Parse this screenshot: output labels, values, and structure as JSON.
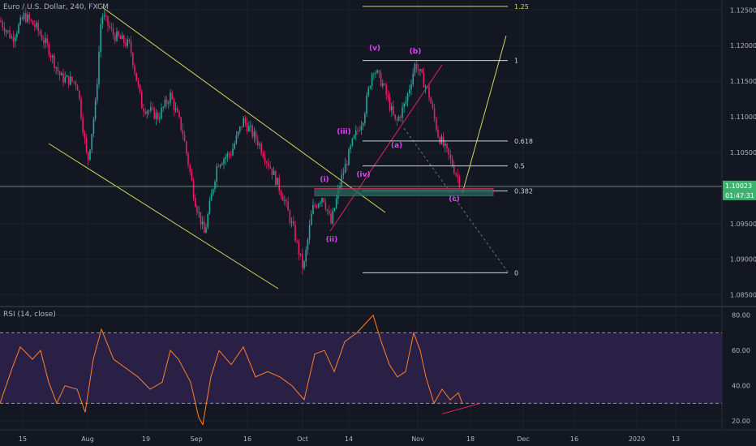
{
  "header": {
    "symbol": "Euro / U.S. Dollar, 240, FXCM"
  },
  "rsi_header": {
    "label": "RSI (14, close)"
  },
  "colors": {
    "background": "#131722",
    "up_candle": "#26a69a",
    "down_candle": "#e91e63",
    "channel": "#d4d45a",
    "fib": "#d1d4dc",
    "wave_label": "#e040fb",
    "trendline": "#e91e63",
    "price_badge": "#3cb371",
    "rsi_line": "#ff7f2a",
    "rsi_band": "#2a1f45",
    "grid": "#1e2230"
  },
  "chart_data": [
    {
      "type": "candlestick",
      "title": "Euro / U.S. Dollar, 240, FXCM",
      "y_axis": {
        "ticks": [
          "1.12500",
          "1.12000",
          "1.11500",
          "1.11000",
          "1.10500",
          "1.10000",
          "1.09500",
          "1.09000",
          "1.08500"
        ],
        "range": [
          1.0837,
          1.1264
        ]
      },
      "x_axis": {
        "ticks": [
          "15",
          "Aug",
          "19",
          "Sep",
          "16",
          "Oct",
          "14",
          "Nov",
          "18",
          "Dec",
          "16",
          "2020",
          "13"
        ]
      },
      "last_price": "1.10023",
      "countdown": "01:47:31",
      "fib_levels": [
        {
          "label": "1.25",
          "price": 1.1255
        },
        {
          "label": "1",
          "price": 1.1179
        },
        {
          "label": "0.618",
          "price": 1.1066
        },
        {
          "label": "0.5",
          "price": 1.1031
        },
        {
          "label": "0.382",
          "price": 1.0996
        },
        {
          "label": "0",
          "price": 1.0881
        }
      ],
      "wave_labels": [
        "(i)",
        "(ii)",
        "(iii)",
        "(iv)",
        "(v)",
        "(a)",
        "(b)",
        "(c)"
      ],
      "price_path": [
        [
          0,
          1.1235
        ],
        [
          15,
          1.121
        ],
        [
          30,
          1.1242
        ],
        [
          45,
          1.1225
        ],
        [
          60,
          1.1195
        ],
        [
          75,
          1.1155
        ],
        [
          95,
          1.1148
        ],
        [
          108,
          1.1035
        ],
        [
          118,
          1.112
        ],
        [
          125,
          1.1245
        ],
        [
          140,
          1.1215
        ],
        [
          160,
          1.12
        ],
        [
          175,
          1.1115
        ],
        [
          195,
          1.11
        ],
        [
          210,
          1.113
        ],
        [
          225,
          1.108
        ],
        [
          240,
          1.0985
        ],
        [
          252,
          1.0935
        ],
        [
          268,
          1.1035
        ],
        [
          285,
          1.105
        ],
        [
          300,
          1.1095
        ],
        [
          318,
          1.1065
        ],
        [
          335,
          1.1025
        ],
        [
          350,
          1.0985
        ],
        [
          362,
          1.094
        ],
        [
          374,
          1.0885
        ],
        [
          385,
          1.097
        ],
        [
          398,
          1.099
        ],
        [
          408,
          1.095
        ],
        [
          420,
          1.101
        ],
        [
          435,
          1.1065
        ],
        [
          448,
          1.11
        ],
        [
          460,
          1.117
        ],
        [
          472,
          1.1145
        ],
        [
          488,
          1.109
        ],
        [
          500,
          1.112
        ],
        [
          512,
          1.1175
        ],
        [
          528,
          1.1135
        ],
        [
          540,
          1.1075
        ],
        [
          555,
          1.104
        ],
        [
          568,
          1.1005
        ]
      ]
    },
    {
      "type": "line",
      "title": "RSI (14, close)",
      "y_axis": {
        "ticks": [
          "80.00",
          "60.00",
          "40.00",
          "20.00"
        ],
        "range": [
          15,
          84
        ]
      },
      "bands": [
        70,
        30
      ],
      "series": [
        {
          "values": [
            [
              0,
              30
            ],
            [
              15,
              50
            ],
            [
              25,
              62
            ],
            [
              40,
              55
            ],
            [
              50,
              60
            ],
            [
              60,
              42
            ],
            [
              70,
              30
            ],
            [
              80,
              40
            ],
            [
              95,
              38
            ],
            [
              105,
              25
            ],
            [
              115,
              55
            ],
            [
              125,
              72
            ],
            [
              140,
              55
            ],
            [
              155,
              50
            ],
            [
              170,
              45
            ],
            [
              185,
              38
            ],
            [
              200,
              42
            ],
            [
              210,
              60
            ],
            [
              220,
              55
            ],
            [
              235,
              42
            ],
            [
              245,
              22
            ],
            [
              250,
              18
            ],
            [
              260,
              45
            ],
            [
              270,
              60
            ],
            [
              285,
              52
            ],
            [
              300,
              62
            ],
            [
              315,
              45
            ],
            [
              330,
              48
            ],
            [
              345,
              45
            ],
            [
              360,
              40
            ],
            [
              375,
              32
            ],
            [
              388,
              58
            ],
            [
              400,
              60
            ],
            [
              412,
              48
            ],
            [
              425,
              65
            ],
            [
              440,
              70
            ],
            [
              452,
              76
            ],
            [
              460,
              80
            ],
            [
              470,
              65
            ],
            [
              480,
              52
            ],
            [
              490,
              45
            ],
            [
              500,
              48
            ],
            [
              510,
              70
            ],
            [
              518,
              60
            ],
            [
              525,
              45
            ],
            [
              535,
              30
            ],
            [
              545,
              38
            ],
            [
              555,
              32
            ],
            [
              565,
              36
            ],
            [
              570,
              30
            ]
          ]
        }
      ]
    }
  ]
}
